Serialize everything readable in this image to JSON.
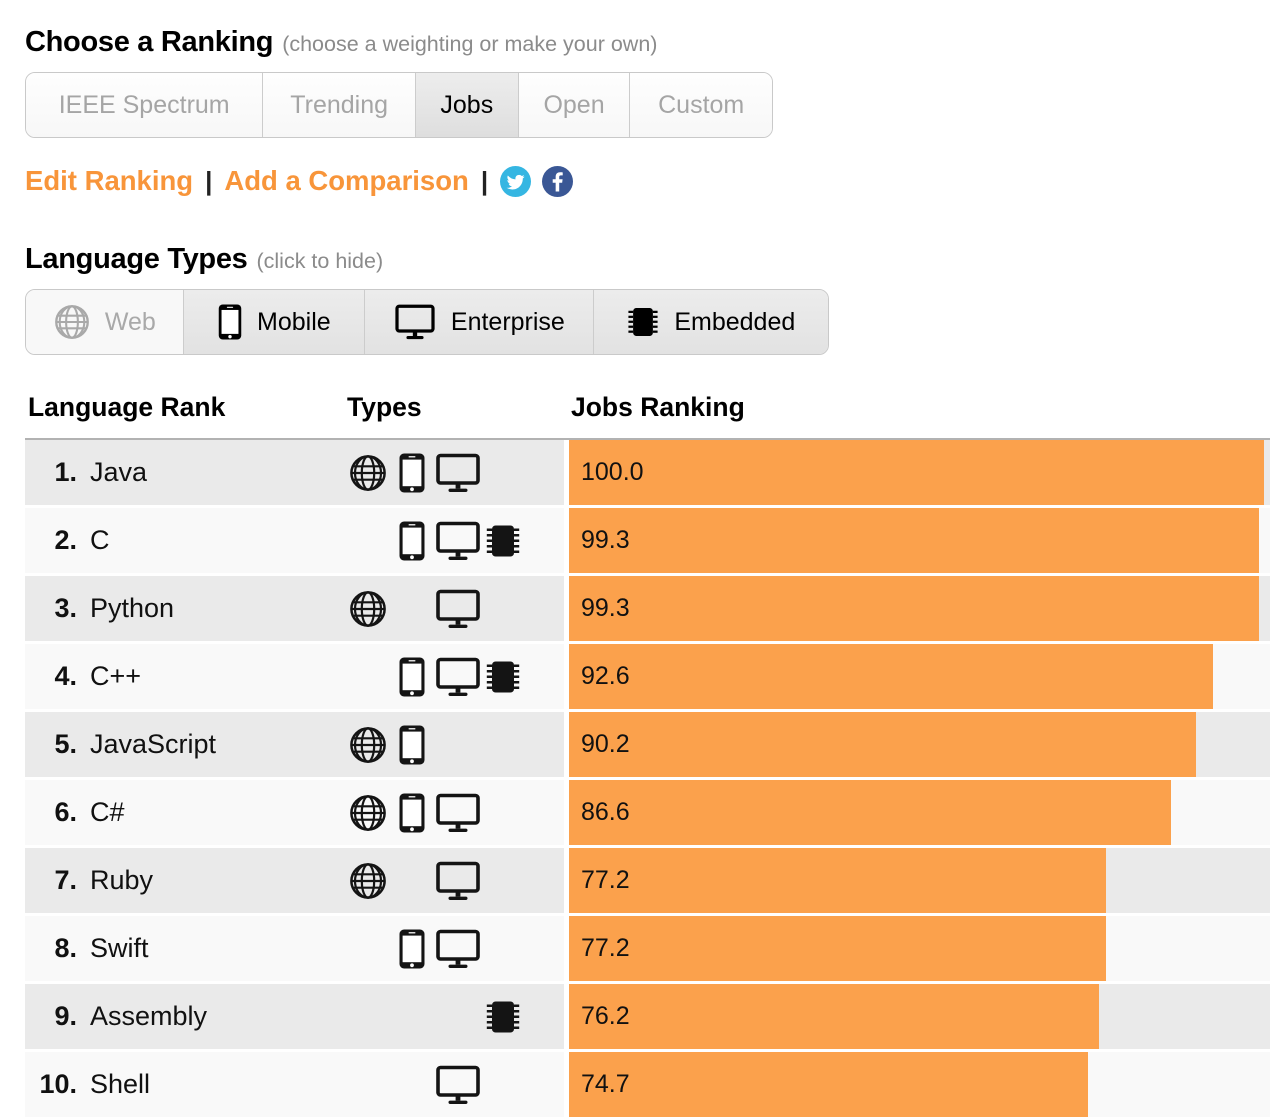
{
  "ranking_section": {
    "title": "Choose a Ranking",
    "subtitle": "(choose a weighting or make your own)",
    "tabs": [
      {
        "label": "IEEE Spectrum",
        "selected": false
      },
      {
        "label": "Trending",
        "selected": false
      },
      {
        "label": "Jobs",
        "selected": true
      },
      {
        "label": "Open",
        "selected": false
      },
      {
        "label": "Custom",
        "selected": false
      }
    ]
  },
  "actions": {
    "edit_ranking": "Edit Ranking",
    "separator": "|",
    "add_comparison": "Add a Comparison",
    "social": [
      {
        "name": "twitter-icon",
        "color": "#35b6e2"
      },
      {
        "name": "facebook-icon",
        "color": "#3a5795"
      }
    ]
  },
  "types_section": {
    "title": "Language Types",
    "subtitle": "(click to hide)",
    "buttons": [
      {
        "label": "Web",
        "icon": "web",
        "active": false
      },
      {
        "label": "Mobile",
        "icon": "mobile",
        "active": true
      },
      {
        "label": "Enterprise",
        "icon": "enterprise",
        "active": true
      },
      {
        "label": "Embedded",
        "icon": "embedded",
        "active": true
      }
    ]
  },
  "table": {
    "headers": {
      "language_rank": "Language Rank",
      "types": "Types",
      "jobs_ranking": "Jobs Ranking"
    },
    "rows": [
      {
        "rank": "1.",
        "language": "Java",
        "types": [
          "web",
          "mobile",
          "enterprise"
        ],
        "value": "100.0",
        "pct": 100.0
      },
      {
        "rank": "2.",
        "language": "C",
        "types": [
          "mobile",
          "enterprise",
          "embedded"
        ],
        "value": "99.3",
        "pct": 99.3
      },
      {
        "rank": "3.",
        "language": "Python",
        "types": [
          "web",
          "enterprise"
        ],
        "value": "99.3",
        "pct": 99.3
      },
      {
        "rank": "4.",
        "language": "C++",
        "types": [
          "mobile",
          "enterprise",
          "embedded"
        ],
        "value": "92.6",
        "pct": 92.6
      },
      {
        "rank": "5.",
        "language": "JavaScript",
        "types": [
          "web",
          "mobile"
        ],
        "value": "90.2",
        "pct": 90.2
      },
      {
        "rank": "6.",
        "language": "C#",
        "types": [
          "web",
          "mobile",
          "enterprise"
        ],
        "value": "86.6",
        "pct": 86.6
      },
      {
        "rank": "7.",
        "language": "Ruby",
        "types": [
          "web",
          "enterprise"
        ],
        "value": "77.2",
        "pct": 77.2
      },
      {
        "rank": "8.",
        "language": "Swift",
        "types": [
          "mobile",
          "enterprise"
        ],
        "value": "77.2",
        "pct": 77.2
      },
      {
        "rank": "9.",
        "language": "Assembly",
        "types": [
          "embedded"
        ],
        "value": "76.2",
        "pct": 76.2
      },
      {
        "rank": "10.",
        "language": "Shell",
        "types": [
          "enterprise"
        ],
        "value": "74.7",
        "pct": 74.7
      }
    ]
  },
  "colors": {
    "bar_orange": "#fba14c",
    "link_orange": "#f8953a",
    "row_odd": "#eaeaea",
    "row_even": "#f9f9f9",
    "selected_tab_bg": "#e5e5e5",
    "muted_text": "#a5a5a5"
  }
}
